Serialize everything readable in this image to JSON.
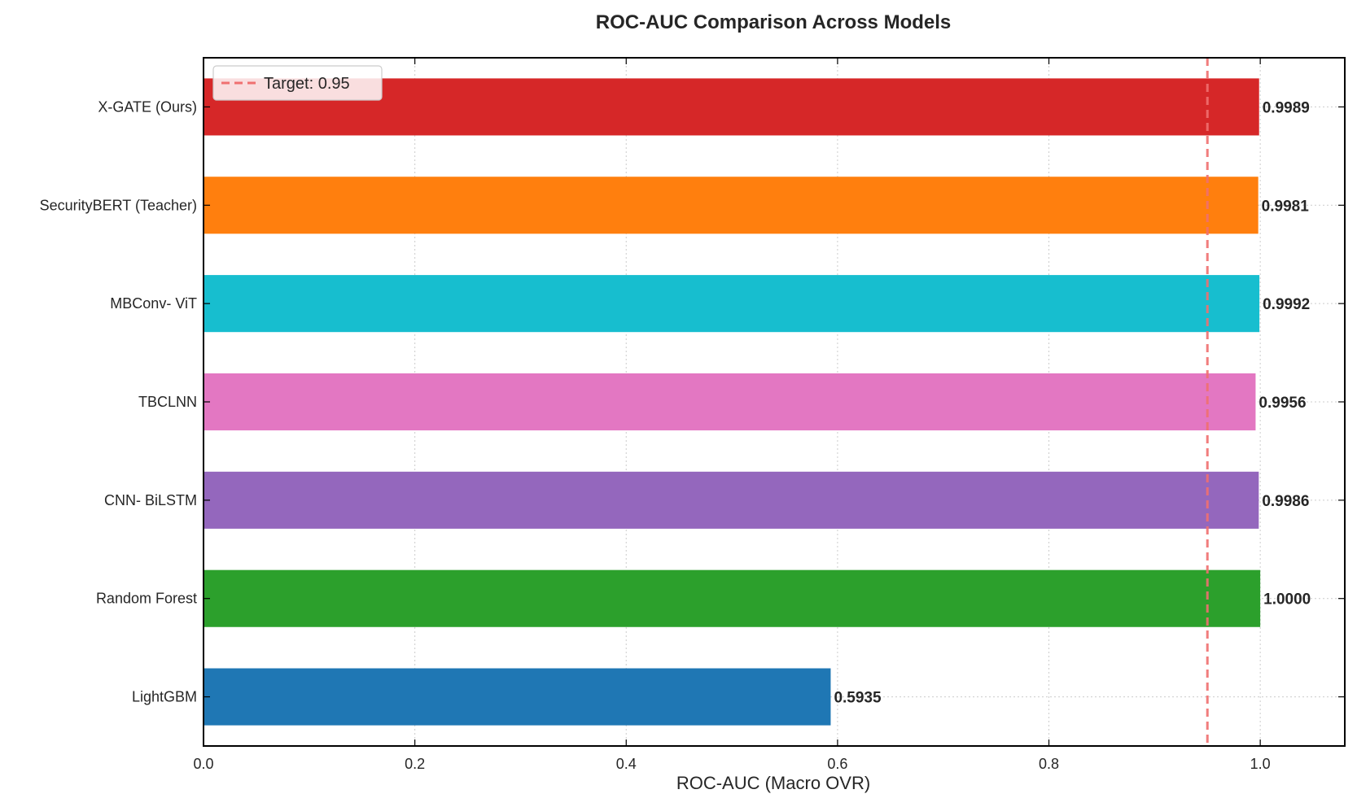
{
  "chart_data": {
    "type": "bar",
    "orientation": "horizontal",
    "title": "ROC-AUC Comparison Across Models",
    "xlabel": "ROC-AUC (Macro OVR)",
    "ylabel": "",
    "xlim": [
      0,
      1.08
    ],
    "xticks": [
      0.0,
      0.2,
      0.4,
      0.6,
      0.8,
      1.0
    ],
    "xtick_labels": [
      "0.0",
      "0.2",
      "0.4",
      "0.6",
      "0.8",
      "1.0"
    ],
    "grid": true,
    "categories": [
      "LightGBM",
      "Random Forest",
      "CNN- BiLSTM",
      "TBCLNN",
      "MBConv- ViT",
      "SecurityBERT (Teacher)",
      "X-GATE (Ours)"
    ],
    "values": [
      0.5935,
      1.0,
      0.9986,
      0.9956,
      0.9992,
      0.9981,
      0.9989
    ],
    "value_labels": [
      "0.5935",
      "1.0000",
      "0.9986",
      "0.9956",
      "0.9992",
      "0.9981",
      "0.9989"
    ],
    "colors": [
      "#1f77b4",
      "#2ca02c",
      "#9467bd",
      "#e377c2",
      "#17becf",
      "#ff7f0e",
      "#d62728"
    ],
    "reference_line": {
      "value": 0.95,
      "label": "Target: 0.95",
      "color": "#f07070",
      "style": "dashed"
    },
    "legend": {
      "position": "top-left",
      "entries": [
        "Target: 0.95"
      ]
    }
  }
}
